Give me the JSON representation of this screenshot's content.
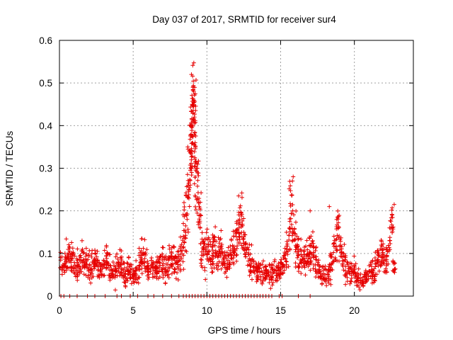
{
  "chart_data": {
    "type": "scatter",
    "title": "Day 037 of 2017, SRMTID for receiver sur4",
    "xlabel": "GPS time / hours",
    "ylabel": "SRMTID / TECUs",
    "xlim": [
      0,
      24
    ],
    "ylim": [
      0,
      0.6
    ],
    "xticks": [
      0,
      5,
      10,
      15,
      20
    ],
    "yticks": [
      0,
      0.1,
      0.2,
      0.3,
      0.4,
      0.5,
      0.6
    ],
    "xtick_labels": [
      "0",
      "5",
      "10",
      "15",
      "20"
    ],
    "ytick_labels": [
      "0",
      "0.1",
      "0.2",
      "0.3",
      "0.4",
      "0.5",
      "0.6"
    ],
    "grid": true,
    "marker": "+",
    "color": "#e60000",
    "series": [
      {
        "name": "SRMTID",
        "x": [
          0.1,
          0.3,
          0.5,
          0.7,
          0.9,
          1.1,
          1.3,
          1.5,
          1.7,
          1.9,
          2.1,
          2.3,
          2.5,
          2.7,
          2.9,
          3.1,
          3.3,
          3.5,
          3.7,
          3.9,
          4.1,
          4.3,
          4.5,
          4.7,
          4.9,
          5.1,
          5.3,
          5.5,
          5.7,
          5.9,
          6.1,
          6.3,
          6.5,
          6.7,
          6.9,
          7.1,
          7.3,
          7.5,
          7.7,
          7.9,
          8.1,
          8.3,
          8.5,
          8.7,
          8.9,
          9.0,
          9.1,
          9.2,
          9.3,
          9.5,
          9.7,
          9.9,
          10.1,
          10.3,
          10.5,
          10.7,
          10.9,
          11.1,
          11.3,
          11.5,
          11.7,
          11.9,
          12.1,
          12.3,
          12.5,
          12.7,
          12.9,
          13.1,
          13.3,
          13.5,
          13.7,
          13.9,
          14.1,
          14.3,
          14.5,
          14.7,
          14.9,
          15.1,
          15.3,
          15.5,
          15.7,
          15.9,
          16.1,
          16.3,
          16.5,
          16.7,
          16.9,
          17.1,
          17.3,
          17.5,
          17.7,
          17.9,
          18.1,
          18.3,
          18.5,
          18.7,
          18.9,
          19.1,
          19.3,
          19.5,
          19.7,
          19.9,
          20.1,
          20.3,
          20.5,
          20.7,
          20.9,
          21.1,
          21.3,
          21.5,
          21.7,
          21.9,
          22.1,
          22.3,
          22.5,
          22.7
        ],
        "y": [
          0.08,
          0.07,
          0.09,
          0.1,
          0.08,
          0.06,
          0.07,
          0.09,
          0.08,
          0.07,
          0.06,
          0.08,
          0.09,
          0.07,
          0.06,
          0.08,
          0.07,
          0.06,
          0.05,
          0.07,
          0.08,
          0.06,
          0.05,
          0.07,
          0.06,
          0.05,
          0.06,
          0.08,
          0.1,
          0.08,
          0.06,
          0.07,
          0.06,
          0.07,
          0.08,
          0.07,
          0.06,
          0.08,
          0.09,
          0.08,
          0.07,
          0.11,
          0.16,
          0.23,
          0.33,
          0.42,
          0.47,
          0.38,
          0.26,
          0.18,
          0.12,
          0.1,
          0.11,
          0.09,
          0.12,
          0.1,
          0.11,
          0.08,
          0.07,
          0.09,
          0.1,
          0.13,
          0.16,
          0.18,
          0.15,
          0.11,
          0.08,
          0.07,
          0.06,
          0.05,
          0.06,
          0.05,
          0.06,
          0.05,
          0.06,
          0.05,
          0.06,
          0.07,
          0.09,
          0.12,
          0.2,
          0.17,
          0.11,
          0.09,
          0.08,
          0.08,
          0.1,
          0.12,
          0.09,
          0.07,
          0.06,
          0.05,
          0.04,
          0.06,
          0.08,
          0.11,
          0.15,
          0.1,
          0.08,
          0.06,
          0.05,
          0.06,
          0.05,
          0.04,
          0.03,
          0.04,
          0.05,
          0.06,
          0.05,
          0.07,
          0.09,
          0.1,
          0.08,
          0.11,
          0.17,
          0.07
        ],
        "spread": [
          0.025,
          0.025,
          0.025,
          0.03,
          0.025,
          0.02,
          0.025,
          0.025,
          0.025,
          0.025,
          0.02,
          0.025,
          0.025,
          0.02,
          0.02,
          0.025,
          0.025,
          0.02,
          0.02,
          0.025,
          0.025,
          0.02,
          0.02,
          0.025,
          0.02,
          0.02,
          0.02,
          0.025,
          0.03,
          0.025,
          0.02,
          0.02,
          0.02,
          0.025,
          0.025,
          0.025,
          0.02,
          0.025,
          0.025,
          0.025,
          0.03,
          0.03,
          0.05,
          0.07,
          0.09,
          0.08,
          0.06,
          0.08,
          0.06,
          0.05,
          0.04,
          0.035,
          0.035,
          0.03,
          0.035,
          0.03,
          0.03,
          0.025,
          0.025,
          0.025,
          0.03,
          0.035,
          0.04,
          0.04,
          0.035,
          0.03,
          0.025,
          0.02,
          0.02,
          0.02,
          0.02,
          0.015,
          0.02,
          0.02,
          0.02,
          0.02,
          0.02,
          0.025,
          0.03,
          0.04,
          0.05,
          0.04,
          0.03,
          0.03,
          0.025,
          0.025,
          0.03,
          0.03,
          0.03,
          0.02,
          0.02,
          0.02,
          0.015,
          0.02,
          0.025,
          0.035,
          0.04,
          0.03,
          0.025,
          0.02,
          0.02,
          0.02,
          0.015,
          0.015,
          0.015,
          0.015,
          0.02,
          0.02,
          0.02,
          0.025,
          0.03,
          0.03,
          0.03,
          0.035,
          0.03,
          0.015
        ],
        "zero_x": [
          0.1,
          0.3,
          0.7,
          1.2,
          1.9,
          2.4,
          3.1,
          3.9,
          4.2,
          4.8,
          5.3,
          6.0,
          6.4,
          7.0,
          7.6,
          8.1,
          8.4,
          8.6,
          8.8,
          9.0,
          9.2,
          9.4,
          9.6,
          9.8,
          10.0,
          10.2,
          10.4,
          10.6,
          10.8,
          11.0,
          11.2,
          11.4,
          11.6,
          11.8,
          12.0,
          12.2,
          12.4,
          12.6,
          12.8,
          13.0,
          13.2,
          13.4,
          13.6,
          13.8,
          14.0,
          14.2,
          14.4,
          14.9,
          15.1,
          16.2,
          17.0
        ]
      }
    ]
  }
}
